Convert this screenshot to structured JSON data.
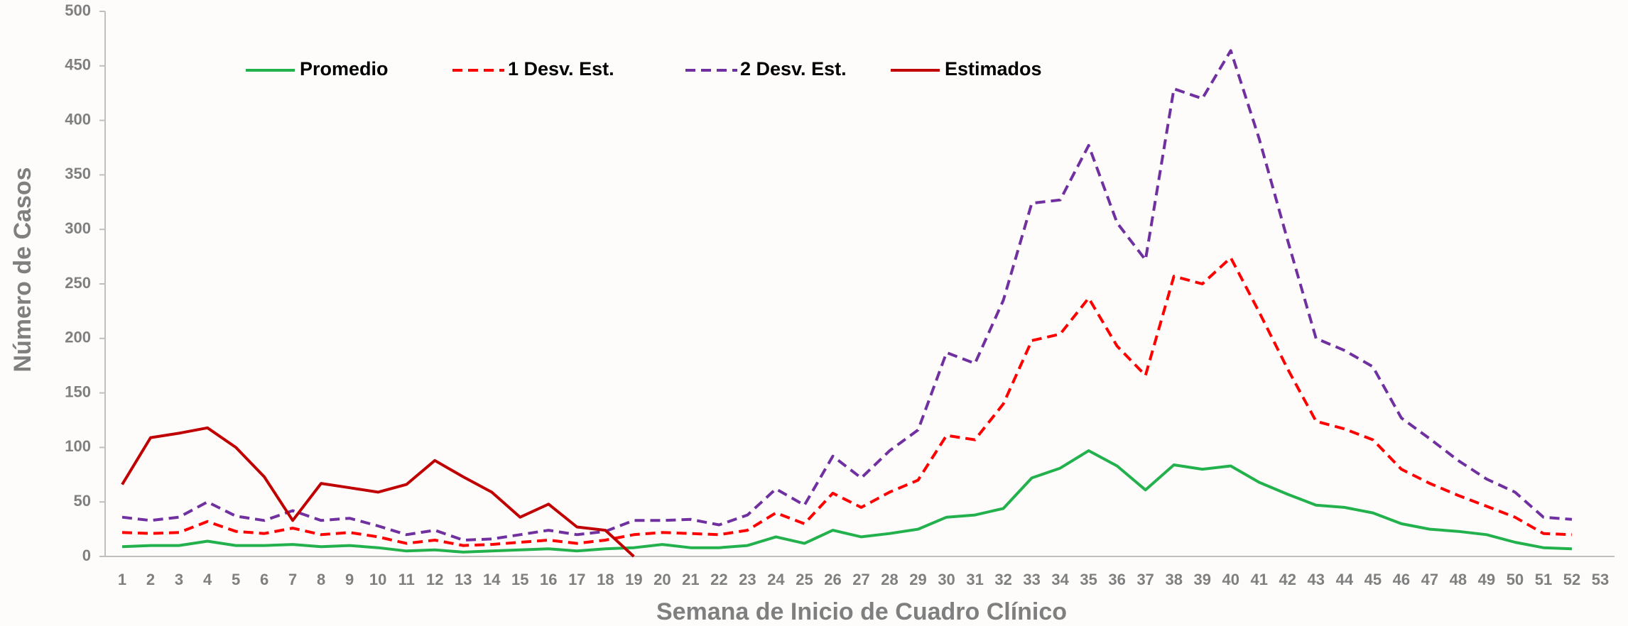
{
  "chart_data": {
    "type": "line",
    "x_label": "Semana de Inicio de Cuadro Clínico",
    "y_label": "Número de Casos",
    "categories": [
      1,
      2,
      3,
      4,
      5,
      6,
      7,
      8,
      9,
      10,
      11,
      12,
      13,
      14,
      15,
      16,
      17,
      18,
      19,
      20,
      21,
      22,
      23,
      24,
      25,
      26,
      27,
      28,
      29,
      30,
      31,
      32,
      33,
      34,
      35,
      36,
      37,
      38,
      39,
      40,
      41,
      42,
      43,
      44,
      45,
      46,
      47,
      48,
      49,
      50,
      51,
      52,
      53
    ],
    "ylim": [
      0,
      500
    ],
    "yticks": [
      0,
      50,
      100,
      150,
      200,
      250,
      300,
      350,
      400,
      450,
      500
    ],
    "grid": false,
    "legend": "top",
    "series": [
      {
        "name": "Promedio",
        "color": "#22b14c",
        "dashed": false,
        "values": [
          9,
          10,
          10,
          14,
          10,
          10,
          11,
          9,
          10,
          8,
          5,
          6,
          4,
          5,
          6,
          7,
          5,
          7,
          8,
          11,
          8,
          8,
          10,
          18,
          12,
          24,
          18,
          21,
          25,
          36,
          38,
          44,
          72,
          81,
          97,
          83,
          61,
          84,
          80,
          83,
          68,
          57,
          47,
          45,
          40,
          30,
          25,
          23,
          20,
          13,
          8,
          7,
          null
        ]
      },
      {
        "name": "1 Desv. Est.",
        "color": "#ff0000",
        "dashed": true,
        "values": [
          22,
          21,
          22,
          32,
          23,
          21,
          26,
          20,
          22,
          18,
          12,
          15,
          10,
          11,
          13,
          15,
          12,
          15,
          20,
          22,
          21,
          20,
          24,
          40,
          30,
          58,
          45,
          59,
          70,
          111,
          107,
          140,
          198,
          204,
          237,
          193,
          166,
          257,
          250,
          274,
          224,
          172,
          124,
          117,
          107,
          80,
          67,
          56,
          46,
          36,
          21,
          20,
          null
        ]
      },
      {
        "name": "2 Desv. Est.",
        "color": "#7030a0",
        "dashed": true,
        "values": [
          36,
          33,
          36,
          50,
          37,
          33,
          42,
          33,
          35,
          28,
          20,
          24,
          15,
          16,
          20,
          24,
          20,
          23,
          33,
          33,
          34,
          29,
          38,
          62,
          47,
          92,
          72,
          97,
          116,
          187,
          177,
          235,
          324,
          327,
          377,
          306,
          272,
          429,
          420,
          464,
          383,
          290,
          200,
          189,
          174,
          127,
          108,
          88,
          71,
          59,
          36,
          34,
          null
        ]
      },
      {
        "name": "Estimados",
        "color": "#c00000",
        "dashed": false,
        "values": [
          66,
          109,
          113,
          118,
          100,
          73,
          33,
          67,
          63,
          59,
          66,
          88,
          73,
          59,
          36,
          48,
          27,
          24,
          0,
          null,
          null,
          null,
          null,
          null,
          null,
          null,
          null,
          null,
          null,
          null,
          null,
          null,
          null,
          null,
          null,
          null,
          null,
          null,
          null,
          null,
          null,
          null,
          null,
          null,
          null,
          null,
          null,
          null,
          null,
          null,
          null,
          null,
          null
        ]
      }
    ]
  }
}
